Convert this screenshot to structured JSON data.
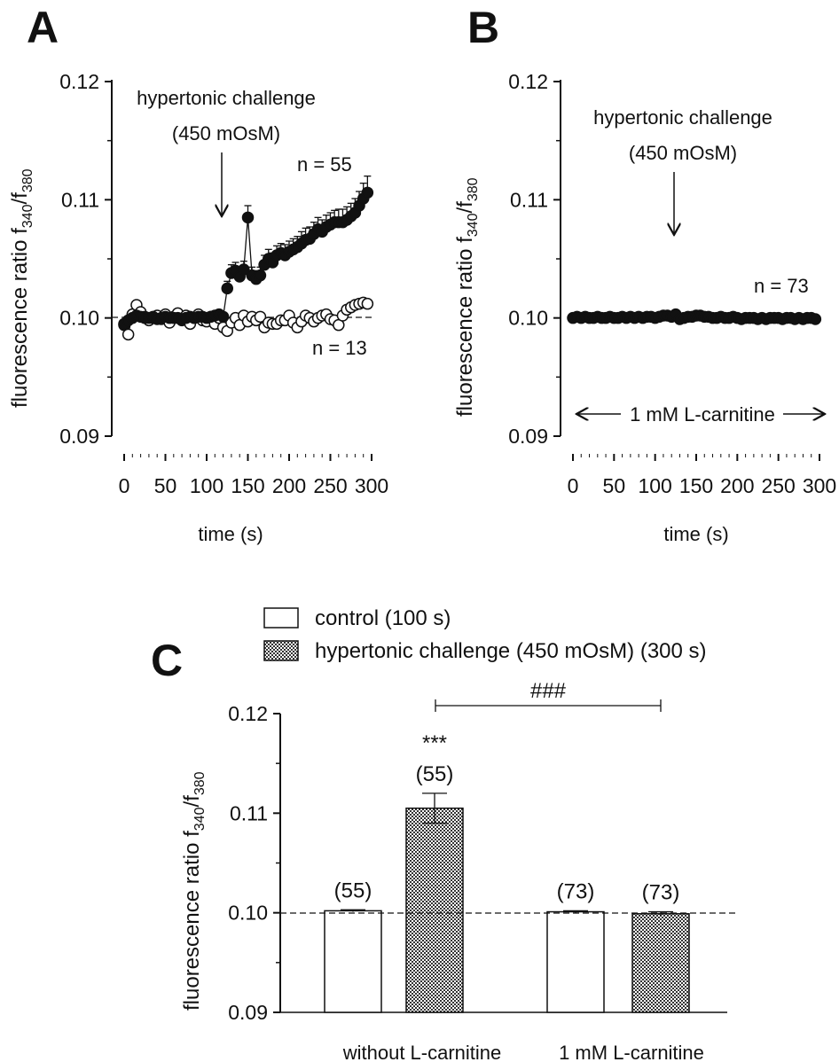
{
  "chart_data": [
    {
      "panel": "A",
      "type": "scatter",
      "ylabel": "fluorescence ratio",
      "ylabel_sub1": "340",
      "ylabel_sub2": "380",
      "ylabel_prefix": "f",
      "ylabel_sep": "/f",
      "xlabel": "time (s)",
      "xlim": [
        0,
        300
      ],
      "ylim": [
        0.09,
        0.12
      ],
      "xticks": [
        "0",
        "50",
        "100",
        "150",
        "200",
        "250",
        "300"
      ],
      "yticks": [
        "0.09",
        "0.10",
        "0.11",
        "0.12"
      ],
      "reference_line": 0.1,
      "annotation_line1": "hypertonic challenge",
      "annotation_line2": "(450 mOsM)",
      "arrow_x": 120,
      "series": [
        {
          "name": "n = 55",
          "marker": "filled",
          "x": [
            0,
            5,
            10,
            15,
            20,
            25,
            30,
            35,
            40,
            45,
            50,
            55,
            60,
            65,
            70,
            75,
            80,
            85,
            90,
            95,
            100,
            105,
            110,
            115,
            120,
            125,
            130,
            135,
            140,
            145,
            150,
            155,
            160,
            165,
            170,
            175,
            180,
            185,
            190,
            195,
            200,
            205,
            210,
            215,
            220,
            225,
            230,
            235,
            240,
            245,
            250,
            255,
            260,
            265,
            270,
            275,
            280,
            285,
            290,
            295
          ],
          "y": [
            0.0995,
            0.0998,
            0.1,
            0.1002,
            0.1001,
            0.1,
            0.1,
            0.1001,
            0.0999,
            0.1,
            0.1001,
            0.1,
            0.1,
            0.1,
            0.0999,
            0.1,
            0.1001,
            0.1,
            0.1001,
            0.1001,
            0.1,
            0.1001,
            0.1002,
            0.1003,
            0.1001,
            0.1025,
            0.1038,
            0.104,
            0.1035,
            0.1041,
            0.1085,
            0.1036,
            0.1033,
            0.1036,
            0.1045,
            0.105,
            0.1047,
            0.1053,
            0.1055,
            0.1053,
            0.1056,
            0.1058,
            0.106,
            0.1063,
            0.1066,
            0.1067,
            0.1071,
            0.1075,
            0.1073,
            0.1077,
            0.1079,
            0.1081,
            0.1081,
            0.1081,
            0.1083,
            0.1086,
            0.1089,
            0.1095,
            0.1101,
            0.1106
          ],
          "err": [
            0.0003,
            0.0003,
            0.0003,
            0.0003,
            0.0003,
            0.0003,
            0.0003,
            0.0003,
            0.0003,
            0.0003,
            0.0003,
            0.0003,
            0.0003,
            0.0003,
            0.0003,
            0.0003,
            0.0003,
            0.0003,
            0.0003,
            0.0003,
            0.0003,
            0.0003,
            0.0003,
            0.0003,
            0.0003,
            0.0006,
            0.0007,
            0.0007,
            0.0007,
            0.0007,
            0.001,
            0.0007,
            0.0007,
            0.0007,
            0.0008,
            0.0008,
            0.0008,
            0.0008,
            0.0008,
            0.0009,
            0.0009,
            0.0009,
            0.0009,
            0.001,
            0.001,
            0.001,
            0.001,
            0.001,
            0.001,
            0.001,
            0.001,
            0.001,
            0.0011,
            0.0011,
            0.0011,
            0.0011,
            0.0012,
            0.0012,
            0.0013,
            0.0014
          ]
        },
        {
          "name": "n = 13",
          "marker": "open",
          "x": [
            0,
            5,
            10,
            15,
            20,
            25,
            30,
            35,
            40,
            45,
            50,
            55,
            60,
            65,
            70,
            75,
            80,
            85,
            90,
            95,
            100,
            105,
            110,
            115,
            120,
            125,
            130,
            135,
            140,
            145,
            150,
            155,
            160,
            165,
            170,
            175,
            180,
            185,
            190,
            195,
            200,
            205,
            210,
            215,
            220,
            225,
            230,
            235,
            240,
            245,
            250,
            255,
            260,
            265,
            270,
            275,
            280,
            285,
            290,
            295
          ],
          "y": [
            0.0994,
            0.0986,
            0.1003,
            0.1011,
            0.1005,
            0.1001,
            0.0998,
            0.1,
            0.1002,
            0.0999,
            0.1003,
            0.0996,
            0.1001,
            0.1004,
            0.0998,
            0.1002,
            0.0995,
            0.1,
            0.1003,
            0.0998,
            0.0997,
            0.1001,
            0.0995,
            0.1,
            0.0992,
            0.0989,
            0.0996,
            0.1,
            0.0994,
            0.1002,
            0.0997,
            0.1001,
            0.0998,
            0.1001,
            0.0992,
            0.0996,
            0.0995,
            0.0995,
            0.0998,
            0.0998,
            0.1002,
            0.0996,
            0.0992,
            0.0997,
            0.1002,
            0.1,
            0.0997,
            0.1,
            0.1002,
            0.1003,
            0.0999,
            0.0998,
            0.0994,
            0.1002,
            0.1007,
            0.1009,
            0.1011,
            0.1012,
            0.1013,
            0.1012
          ],
          "err": [
            0.0003,
            0.0003,
            0.0003,
            0.0003,
            0.0003,
            0.0003,
            0.0003,
            0.0003,
            0.0003,
            0.0003,
            0.0003,
            0.0003,
            0.0003,
            0.0003,
            0.0003,
            0.0003,
            0.0003,
            0.0003,
            0.0003,
            0.0003,
            0.0003,
            0.0003,
            0.0003,
            0.0003,
            0.0003,
            0.0003,
            0.0003,
            0.0003,
            0.0003,
            0.0003,
            0.0003,
            0.0003,
            0.0003,
            0.0003,
            0.0003,
            0.0003,
            0.0003,
            0.0003,
            0.0003,
            0.0003,
            0.0003,
            0.0003,
            0.0003,
            0.0003,
            0.0003,
            0.0003,
            0.0003,
            0.0003,
            0.0003,
            0.0003,
            0.0003,
            0.0003,
            0.0003,
            0.0003,
            0.0003,
            0.0003,
            0.0003,
            0.0003,
            0.0003,
            0.0003
          ]
        }
      ]
    },
    {
      "panel": "B",
      "type": "scatter",
      "ylabel": "fluorescence ratio",
      "ylabel_sub1": "340",
      "ylabel_sub2": "380",
      "ylabel_prefix": "f",
      "ylabel_sep": "/f",
      "xlabel": "time (s)",
      "xlim": [
        0,
        300
      ],
      "ylim": [
        0.09,
        0.12
      ],
      "xticks": [
        "0",
        "50",
        "100",
        "150",
        "200",
        "250",
        "300"
      ],
      "yticks": [
        "0.09",
        "0.10",
        "0.11",
        "0.12"
      ],
      "annotation_line1": "hypertonic challenge",
      "annotation_line2": "(450 mOsM)",
      "arrow_x": 120,
      "range_label": "1 mM L-carnitine",
      "series": [
        {
          "name": "n = 73",
          "marker": "filled",
          "x": [
            0,
            5,
            10,
            15,
            20,
            25,
            30,
            35,
            40,
            45,
            50,
            55,
            60,
            65,
            70,
            75,
            80,
            85,
            90,
            95,
            100,
            105,
            110,
            115,
            120,
            125,
            130,
            135,
            140,
            145,
            150,
            155,
            160,
            165,
            170,
            175,
            180,
            185,
            190,
            195,
            200,
            205,
            210,
            215,
            220,
            225,
            230,
            235,
            240,
            245,
            250,
            255,
            260,
            265,
            270,
            275,
            280,
            285,
            290,
            295
          ],
          "y": [
            0.1,
            0.1001,
            0.1,
            0.1001,
            0.1,
            0.1,
            0.1001,
            0.1,
            0.1,
            0.1001,
            0.1,
            0.1,
            0.1001,
            0.1,
            0.1001,
            0.1,
            0.1001,
            0.1,
            0.1001,
            0.1001,
            0.1,
            0.1001,
            0.1002,
            0.1002,
            0.1001,
            0.1003,
            0.0999,
            0.1,
            0.1001,
            0.1001,
            0.1002,
            0.1002,
            0.1001,
            0.1001,
            0.1,
            0.1,
            0.1001,
            0.1,
            0.1,
            0.1001,
            0.1,
            0.0999,
            0.1,
            0.1,
            0.1,
            0.0999,
            0.1,
            0.0999,
            0.1,
            0.1,
            0.1,
            0.0999,
            0.1,
            0.1,
            0.0999,
            0.1,
            0.0999,
            0.1,
            0.1,
            0.0999
          ],
          "err": [
            0.0002,
            0.0002,
            0.0002,
            0.0002,
            0.0002,
            0.0002,
            0.0002,
            0.0002,
            0.0002,
            0.0002,
            0.0002,
            0.0002,
            0.0002,
            0.0002,
            0.0002,
            0.0002,
            0.0002,
            0.0002,
            0.0002,
            0.0002,
            0.0002,
            0.0002,
            0.0002,
            0.0002,
            0.0002,
            0.0002,
            0.0002,
            0.0002,
            0.0002,
            0.0002,
            0.0002,
            0.0002,
            0.0002,
            0.0002,
            0.0002,
            0.0002,
            0.0002,
            0.0002,
            0.0002,
            0.0002,
            0.0002,
            0.0002,
            0.0002,
            0.0002,
            0.0002,
            0.0002,
            0.0002,
            0.0002,
            0.0002,
            0.0002,
            0.0002,
            0.0002,
            0.0002,
            0.0002,
            0.0002,
            0.0002,
            0.0002,
            0.0002,
            0.0002,
            0.0002
          ]
        }
      ]
    },
    {
      "panel": "C",
      "type": "bar",
      "ylabel": "fluorescence ratio",
      "ylabel_sub1": "340",
      "ylabel_sub2": "380",
      "ylabel_prefix": "f",
      "ylabel_sep": "/f",
      "ylim": [
        0.09,
        0.12
      ],
      "yticks": [
        "0.09",
        "0.10",
        "0.11",
        "0.12"
      ],
      "reference_line": 0.1,
      "categories": [
        "without L-carnitine",
        "1 mM L-carnitine"
      ],
      "legend": [
        "control (100 s)",
        "hypertonic challenge (450 mOsM) (300 s)"
      ],
      "series": [
        {
          "name": "control (100 s)",
          "values": [
            0.1002,
            0.1001
          ],
          "err": [
            0.0001,
            0.0001
          ],
          "n_labels": [
            "(55)",
            "(73)"
          ]
        },
        {
          "name": "hypertonic challenge (450 mOsM) (300 s)",
          "values": [
            0.1105,
            0.0999
          ],
          "err": [
            0.0015,
            0.0002
          ],
          "n_labels": [
            "(55)",
            "(73)"
          ]
        }
      ],
      "significance_star": "***",
      "significance_hash": "###"
    }
  ],
  "panel_labels": [
    "A",
    "B",
    "C"
  ]
}
